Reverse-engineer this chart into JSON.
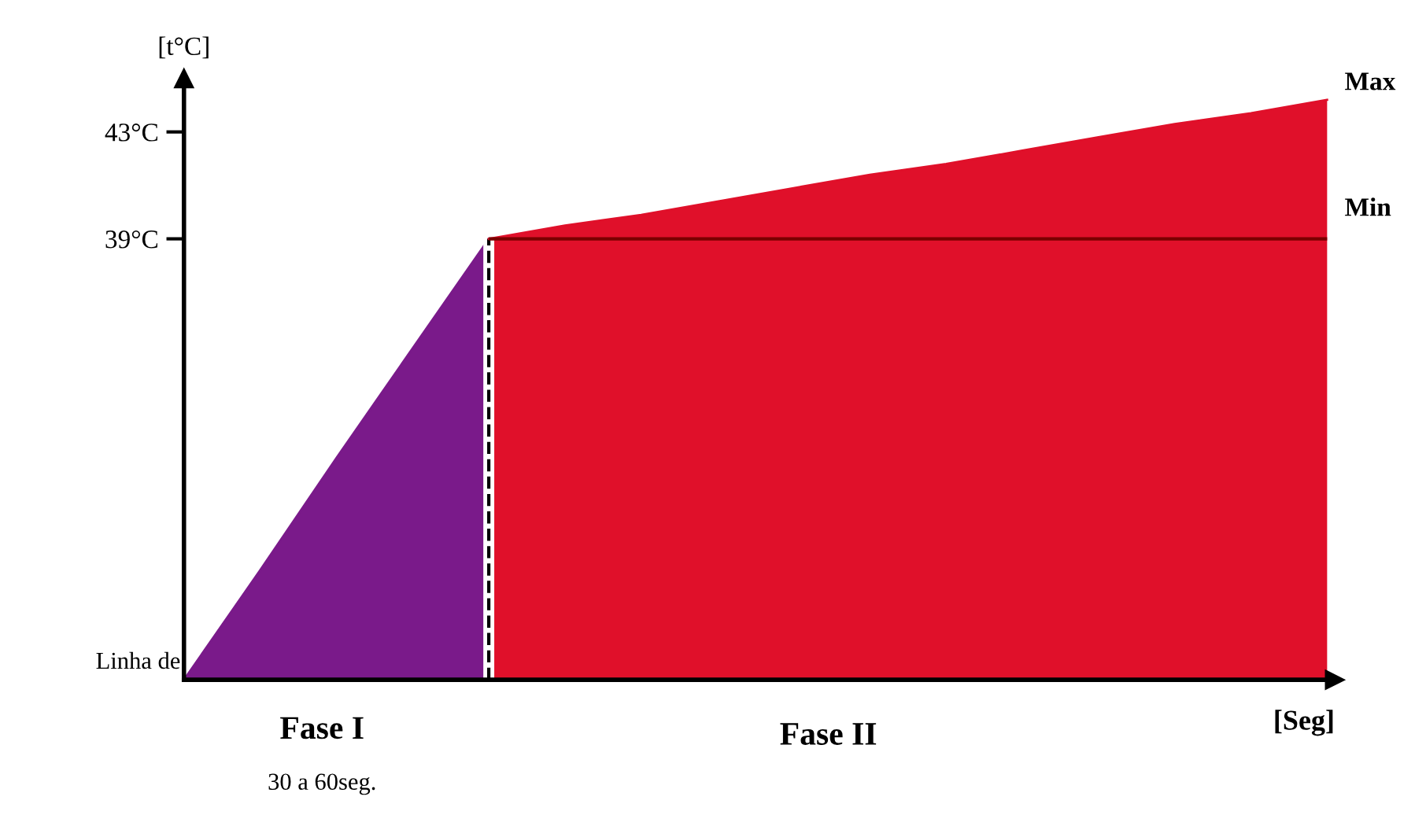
{
  "chart_data": {
    "type": "area",
    "ylabel": "[t°C]",
    "xlabel": "[Seg]",
    "categories": [
      null,
      null,
      null,
      null,
      null,
      null,
      null,
      null,
      null,
      null,
      null,
      null,
      null,
      null,
      null,
      null
    ],
    "series": [
      {
        "values": [
          22.5,
          26.6,
          30.8,
          34.9,
          39,
          null,
          null,
          null,
          null,
          null,
          null,
          null,
          null,
          null,
          null,
          null
        ],
        "color": "#7a1a8a",
        "line_style": "dashed"
      },
      {
        "values": [
          null,
          null,
          null,
          null,
          39,
          39.5,
          39.9,
          40.4,
          40.9,
          41.4,
          41.8,
          42.3,
          42.8,
          43.3,
          43.7,
          44.2
        ],
        "color": "#e0102a"
      }
    ],
    "ylim": [
      22.5,
      45
    ],
    "yticks": [
      {
        "value": 39,
        "label": "39°C"
      },
      {
        "value": 43,
        "label": "43°C"
      }
    ],
    "tick_labels": "y",
    "grid": false,
    "ref_lines": [
      {
        "axis": "y",
        "value": 39,
        "label": "Min",
        "color": "#7a0000",
        "line_style": "solid"
      }
    ],
    "annotations": [
      "Max",
      "Linha de",
      "Fase I",
      "30 a 60seg.",
      "Fase II"
    ]
  }
}
